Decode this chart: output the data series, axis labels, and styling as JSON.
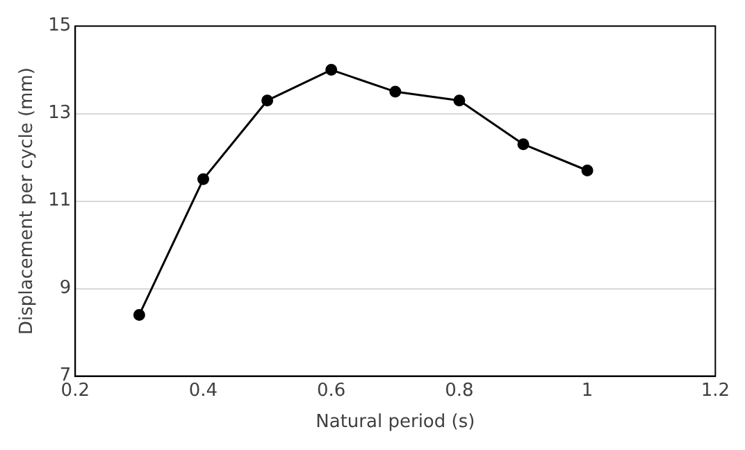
{
  "chart_data": {
    "type": "line",
    "xlabel": "Natural period (s)",
    "ylabel": "Displacement per cycle (mm)",
    "x": [
      0.3,
      0.4,
      0.5,
      0.6,
      0.7,
      0.8,
      0.9,
      1.0
    ],
    "series": [
      {
        "color": "#000000",
        "values": [
          8.4,
          11.5,
          13.3,
          14.0,
          13.5,
          13.3,
          12.3,
          11.7
        ]
      }
    ],
    "xlim": [
      0.2,
      1.2
    ],
    "xticks": [
      0.2,
      0.4,
      0.6,
      0.8,
      1,
      1.2
    ],
    "ylim": [
      7,
      15
    ],
    "yticks": [
      7,
      9,
      11,
      13,
      15
    ],
    "grid": "y",
    "legend": false,
    "marker": "circle",
    "line_style": "solid"
  }
}
